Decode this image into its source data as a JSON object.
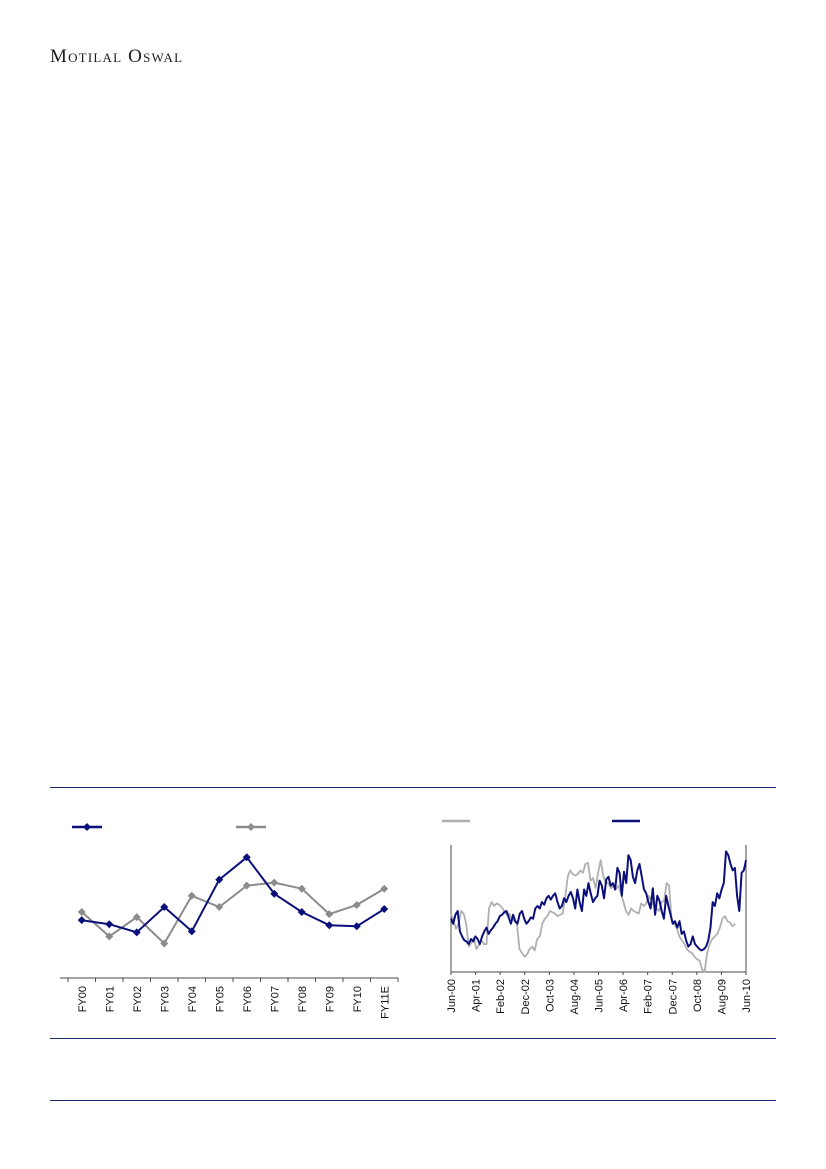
{
  "header": {
    "logo_text": "Motilal Oswal"
  },
  "colors": {
    "rule": "#1b2a6e",
    "series_navy": "#0b0f7a",
    "series_grey": "#8c8c8c"
  },
  "chart_data": [
    {
      "type": "line",
      "categories": [
        "FY00",
        "FY01",
        "FY02",
        "FY03",
        "FY04",
        "FY05",
        "FY06",
        "FY07",
        "FY08",
        "FY09",
        "FY10",
        "FY11E"
      ],
      "series": [
        {
          "color": "#0b0f7a",
          "marker": "diamond",
          "values": [
            68.5,
            66.5,
            62.5,
            75.0,
            63.0,
            88.5,
            99.5,
            81.5,
            72.5,
            66.0,
            65.5,
            74.0
          ]
        },
        {
          "color": "#8c8c8c",
          "marker": "diamond",
          "values": [
            72.5,
            60.5,
            70.0,
            57.0,
            80.5,
            75.0,
            85.5,
            87.0,
            84.0,
            71.5,
            76.0,
            84.0
          ]
        }
      ],
      "ylim": [
        40,
        108
      ],
      "legend": "top",
      "grid": false
    },
    {
      "type": "line",
      "x_tick_labels": [
        "Jun-00",
        "Apr-01",
        "Feb-02",
        "Dec-02",
        "Oct-03",
        "Aug-04",
        "Jun-05",
        "Apr-06",
        "Feb-07",
        "Dec-07",
        "Oct-08",
        "Aug-09",
        "Jun-10"
      ],
      "series": [
        {
          "color": "#b0b0b0",
          "values": [
            46,
            40,
            34,
            38,
            48,
            46,
            38,
            20,
            23,
            27,
            18,
            21,
            25,
            22,
            22,
            50,
            55,
            52,
            54,
            53,
            51,
            48,
            45,
            46,
            42,
            40,
            38,
            18,
            15,
            12,
            14,
            18,
            20,
            17,
            26,
            28,
            38,
            42,
            44,
            48,
            47,
            46,
            44,
            45,
            46,
            58,
            75,
            80,
            77,
            76,
            77,
            80,
            78,
            85,
            86,
            72,
            74,
            66,
            78,
            88,
            76,
            70,
            70,
            66,
            68,
            65,
            68,
            62,
            55,
            48,
            45,
            50,
            48,
            47,
            46,
            54,
            52,
            54,
            60,
            56,
            52,
            50,
            48,
            55,
            56,
            70,
            68,
            40,
            38,
            35,
            28,
            25,
            22,
            18,
            16,
            15,
            12,
            10,
            9,
            2,
            0,
            15,
            22,
            26,
            28,
            30,
            35,
            42,
            44,
            40,
            39,
            36,
            38
          ]
        },
        {
          "color": "#0b0f7a",
          "values": [
            42,
            38,
            45,
            48,
            32,
            28,
            25,
            24,
            22,
            26,
            24,
            28,
            26,
            22,
            28,
            32,
            35,
            30,
            33,
            35,
            38,
            40,
            44,
            45,
            47,
            48,
            43,
            38,
            45,
            40,
            38,
            46,
            48,
            42,
            38,
            40,
            43,
            42,
            50,
            52,
            50,
            55,
            53,
            58,
            60,
            57,
            60,
            62,
            55,
            50,
            52,
            58,
            55,
            60,
            63,
            58,
            50,
            65,
            55,
            48,
            65,
            60,
            70,
            62,
            55,
            58,
            60,
            72,
            68,
            58,
            73,
            75,
            68,
            70,
            65,
            82,
            78,
            60,
            79,
            70,
            92,
            88,
            75,
            70,
            80,
            85,
            75,
            65,
            62,
            55,
            50,
            66,
            45,
            60,
            56,
            48,
            42,
            60,
            52,
            45,
            38,
            40,
            35,
            40,
            30,
            32,
            25,
            20,
            22,
            28,
            22,
            20,
            18,
            17,
            18,
            20,
            25,
            35,
            55,
            52,
            62,
            58,
            65,
            70,
            95,
            92,
            85,
            80,
            82,
            60,
            48,
            78,
            80,
            88
          ]
        }
      ],
      "ylim": [
        0,
        100
      ],
      "legend": "top",
      "grid": false
    }
  ]
}
